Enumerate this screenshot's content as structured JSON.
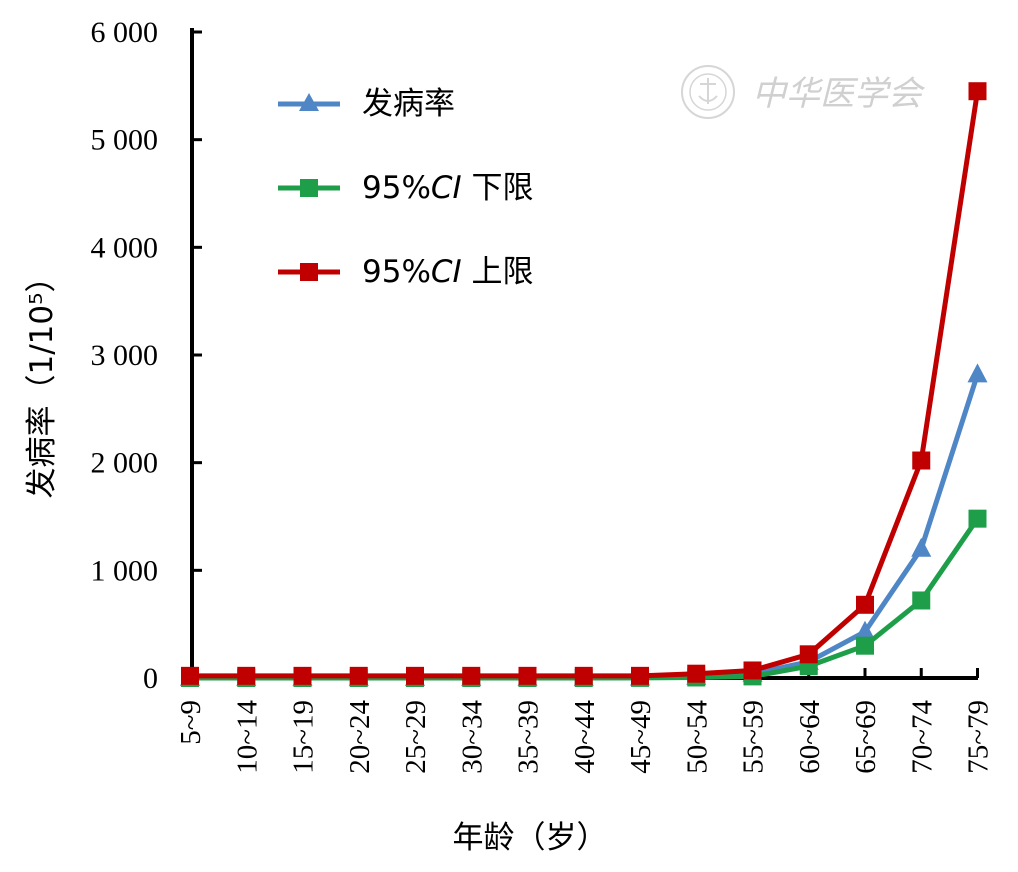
{
  "chart_data": {
    "type": "line",
    "categories": [
      "5~9",
      "10~14",
      "15~19",
      "20~24",
      "25~29",
      "30~34",
      "35~39",
      "40~44",
      "45~49",
      "50~54",
      "55~59",
      "60~64",
      "65~69",
      "70~74",
      "75~79"
    ],
    "series": [
      {
        "name": "发病率",
        "color": "#4f86c6",
        "marker": "triangle",
        "values": [
          1,
          1,
          1,
          1,
          1,
          1,
          1,
          1,
          3,
          12,
          40,
          150,
          430,
          1200,
          2820
        ]
      },
      {
        "name": "95%CI 下限",
        "color": "#1f9e4a",
        "marker": "square",
        "values": [
          0,
          0,
          0,
          0,
          0,
          0,
          0,
          0,
          1,
          5,
          15,
          110,
          300,
          720,
          1480
        ]
      },
      {
        "name": "95%CI 上限",
        "color": "#c00000",
        "marker": "square",
        "values": [
          20,
          20,
          20,
          20,
          20,
          20,
          20,
          20,
          20,
          40,
          70,
          220,
          680,
          2020,
          5450
        ]
      }
    ],
    "yticks": [
      0,
      1000,
      2000,
      3000,
      4000,
      5000,
      6000
    ],
    "ytick_labels": [
      "0",
      "1 000",
      "2 000",
      "3 000",
      "4 000",
      "5 000",
      "6 000"
    ],
    "ylim": [
      0,
      6000
    ],
    "xlabel": "年龄（岁）",
    "ylabel": "发病率（1/10⁵）",
    "grid": false,
    "legend_position": "top-left"
  },
  "legend": {
    "items": [
      {
        "label": "发病率"
      },
      {
        "label_prefix": "95%",
        "label_italic": "CI",
        "label_suffix": " 下限"
      },
      {
        "label_prefix": "95%",
        "label_italic": "CI",
        "label_suffix": " 上限"
      }
    ]
  },
  "watermark": {
    "text": "中华医学会",
    "icon": "society-seal-icon"
  }
}
